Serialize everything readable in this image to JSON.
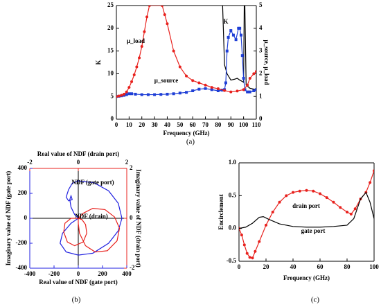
{
  "chart_data": [
    {
      "type": "line",
      "caption": "(a)",
      "xlabel": "Frequency (GHz)",
      "ylabel": "K",
      "y2label": "μ_source, μ_load",
      "xlim": [
        0,
        110
      ],
      "xticks": [
        0,
        10,
        20,
        30,
        40,
        50,
        60,
        70,
        80,
        90,
        100,
        110
      ],
      "ylim": [
        0,
        25
      ],
      "yticks": [
        0,
        5,
        10,
        15,
        20,
        25
      ],
      "y2lim": [
        0,
        5
      ],
      "y2ticks": [
        0,
        1,
        2,
        3,
        4,
        5
      ],
      "series": [
        {
          "name": "K",
          "color": "#000000",
          "axis": "y",
          "x": [
            83.5,
            85,
            87,
            90,
            93,
            95,
            97,
            99,
            100,
            100.5,
            100.7,
            101,
            102,
            105,
            110
          ],
          "values": [
            25,
            12,
            10,
            8.6,
            8.8,
            9,
            8.6,
            8.3,
            8.1,
            25,
            null,
            25,
            7.5,
            6.8,
            6.5
          ]
        },
        {
          "name": "μ_source",
          "color": "#1f3fd6",
          "axis": "y2",
          "marker": "square",
          "x": [
            0,
            2,
            4,
            6,
            8,
            10,
            12,
            15,
            20,
            25,
            30,
            35,
            40,
            45,
            50,
            55,
            60,
            65,
            70,
            75,
            80,
            83,
            85,
            86,
            87,
            88,
            90,
            92,
            94,
            96,
            97,
            98,
            99,
            100,
            101,
            103,
            105,
            108,
            110
          ],
          "values": [
            1.0,
            1.01,
            1.03,
            1.05,
            1.08,
            1.12,
            1.12,
            1.1,
            1.08,
            1.08,
            1.08,
            1.09,
            1.1,
            1.12,
            1.15,
            1.18,
            1.25,
            1.32,
            1.35,
            1.3,
            1.25,
            1.28,
            1.3,
            1.6,
            3.0,
            3.6,
            3.9,
            3.7,
            3.5,
            4.0,
            4.0,
            3.7,
            2.8,
            1.8,
            1.3,
            1.2,
            1.2,
            1.25,
            1.3
          ]
        },
        {
          "name": "μ_load",
          "color": "#e8211d",
          "axis": "y2",
          "marker": "circle",
          "x": [
            0,
            2,
            4,
            6,
            8,
            10,
            12,
            14,
            16,
            18,
            20,
            22,
            24,
            26,
            36,
            38,
            40,
            45,
            50,
            55,
            60,
            65,
            70,
            75,
            80,
            85,
            90,
            95,
            100,
            103,
            105,
            108,
            110
          ],
          "values": [
            1.0,
            1.02,
            1.05,
            1.1,
            1.2,
            1.4,
            1.65,
            1.95,
            2.3,
            2.7,
            3.2,
            3.85,
            4.5,
            5.0,
            5.0,
            4.6,
            4.2,
            3.0,
            2.3,
            1.9,
            1.7,
            1.6,
            1.5,
            1.4,
            1.34,
            1.26,
            1.2,
            1.24,
            1.3,
            1.5,
            1.8,
            2.0,
            2.1
          ]
        }
      ]
    },
    {
      "type": "line",
      "caption": "(b)",
      "xlabel": "Real value of NDF (gate port)",
      "x2label": "Real value of NDF (drain port)",
      "ylabel": "Imaginary value of NDF (gate port)",
      "y2label": "Imaginary value of NDF (drain port)",
      "xlim": [
        -400,
        400
      ],
      "xticks": [
        -400,
        -200,
        0,
        200,
        400
      ],
      "x2lim": [
        -2,
        2
      ],
      "x2ticks": [
        -2,
        0,
        2
      ],
      "ylim": [
        -400,
        400
      ],
      "yticks": [
        -400,
        -200,
        0,
        200,
        400
      ],
      "y2lim": [
        -2,
        2
      ],
      "y2ticks": [
        -2,
        0,
        2
      ],
      "series": [
        {
          "name": "NDF (gate port)",
          "color": "#1f1fe0",
          "axis": "y",
          "x": [
            0,
            -60,
            -130,
            -150,
            -100,
            0,
            120,
            250,
            330,
            360,
            330,
            250,
            130,
            0,
            -50,
            -80,
            -100,
            -80,
            -50,
            -60,
            -70,
            -60,
            -30,
            0
          ],
          "values": [
            0,
            -40,
            -120,
            -200,
            -270,
            -295,
            -280,
            -200,
            -100,
            0,
            120,
            220,
            285,
            300,
            280,
            230,
            170,
            140,
            150,
            180,
            150,
            90,
            30,
            0
          ]
        },
        {
          "name": "NDF (drain)",
          "color": "#e8211d",
          "axis": "y2",
          "x": [
            0,
            -0.3,
            -0.55,
            -0.6,
            -0.45,
            -0.15,
            0.2,
            0.35,
            0.3,
            0.15,
            0,
            0.2,
            0.6,
            1.1,
            1.5,
            1.7,
            1.6,
            1.2,
            0.7,
            0.3,
            0.05,
            0,
            0
          ],
          "values": [
            0,
            0,
            -0.2,
            -0.55,
            -0.95,
            -1.1,
            -0.95,
            -0.6,
            -0.25,
            -0.05,
            0,
            0.2,
            0.4,
            0.35,
            0.05,
            -0.4,
            -0.9,
            -1.3,
            -1.35,
            -1.1,
            -0.6,
            -0.2,
            0
          ]
        }
      ]
    },
    {
      "type": "line",
      "caption": "(c)",
      "xlabel": "Frequency (GHz)",
      "ylabel": "Encirclement",
      "xlim": [
        0,
        100
      ],
      "xticks": [
        0,
        20,
        40,
        60,
        80,
        100
      ],
      "ylim": [
        -0.5,
        1.0
      ],
      "yticks": [
        -0.5,
        {
          "value": 0,
          "label": "0.0"
        },
        0.5,
        {
          "value": 1,
          "label": "1.0"
        }
      ],
      "series": [
        {
          "name": "drain port",
          "color": "#e8211d",
          "axis": "y",
          "marker": "circle",
          "x": [
            0,
            2,
            4,
            6,
            8,
            10,
            12,
            15,
            20,
            25,
            30,
            35,
            40,
            45,
            50,
            55,
            60,
            65,
            70,
            75,
            80,
            83,
            86,
            90,
            94,
            97,
            100
          ],
          "values": [
            0,
            -0.1,
            -0.25,
            -0.38,
            -0.44,
            -0.45,
            -0.35,
            -0.2,
            0.05,
            0.25,
            0.4,
            0.5,
            0.55,
            0.57,
            0.58,
            0.57,
            0.53,
            0.47,
            0.4,
            0.32,
            0.25,
            0.22,
            0.3,
            0.45,
            0.55,
            0.7,
            0.88
          ]
        },
        {
          "name": "gate port",
          "color": "#000000",
          "axis": "y",
          "x": [
            0,
            5,
            10,
            15,
            18,
            22,
            30,
            40,
            50,
            60,
            70,
            80,
            85,
            90,
            94,
            97,
            100
          ],
          "values": [
            0,
            0.02,
            0.08,
            0.17,
            0.18,
            0.14,
            0.07,
            0.03,
            0.02,
            0.02,
            0.03,
            0.05,
            0.15,
            0.45,
            0.55,
            0.4,
            0.15
          ]
        }
      ]
    }
  ]
}
